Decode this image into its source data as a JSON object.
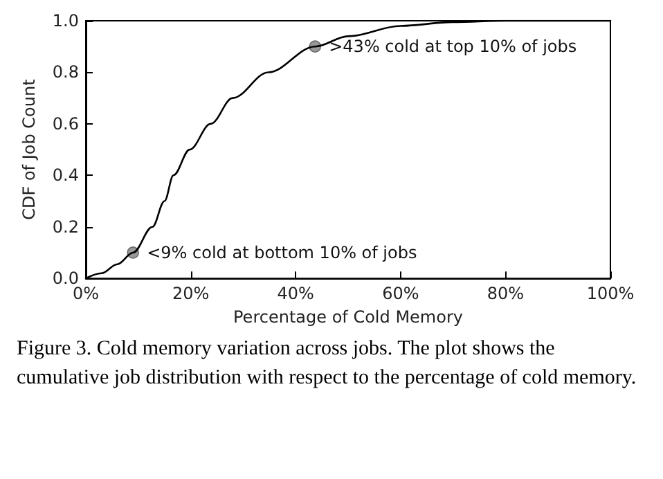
{
  "chart_data": {
    "type": "line",
    "xlabel": "Percentage of Cold Memory",
    "ylabel": "CDF of Job Count",
    "x": [
      0,
      3,
      6,
      9,
      12.7,
      15,
      16.7,
      19.8,
      23.8,
      28,
      34.8,
      43.7,
      50,
      60,
      70,
      80,
      90,
      100
    ],
    "series": [
      {
        "color": "#000000",
        "values": [
          0,
          0.02,
          0.055,
          0.1,
          0.2,
          0.3,
          0.4,
          0.5,
          0.6,
          0.7,
          0.8,
          0.9,
          0.94,
          0.98,
          0.995,
          1.0,
          1.0,
          1.0
        ]
      },
      {
        "type": "scatter",
        "marker": "circle",
        "color": "#808080",
        "x": [
          9,
          43.7
        ],
        "values": [
          0.1,
          0.9
        ]
      }
    ],
    "xlim": [
      0,
      100
    ],
    "xticks": [
      {
        "value": 0,
        "label": "0%"
      },
      {
        "value": 20,
        "label": "20%"
      },
      {
        "value": 40,
        "label": "40%"
      },
      {
        "value": 60,
        "label": "60%"
      },
      {
        "value": 80,
        "label": "80%"
      },
      {
        "value": 100,
        "label": "100%"
      }
    ],
    "ylim": [
      0,
      1
    ],
    "yticks": [
      {
        "value": 0,
        "label": "0.0"
      },
      {
        "value": 0.2,
        "label": "0.2"
      },
      {
        "value": 0.4,
        "label": "0.4"
      },
      {
        "value": 0.6,
        "label": "0.6"
      },
      {
        "value": 0.8,
        "label": "0.8"
      },
      {
        "value": 1,
        "label": "1.0"
      }
    ],
    "grid": false,
    "marker": "none",
    "line_style": "solid",
    "annotations": [
      {
        "text": "<9% cold at bottom 10% of jobs",
        "x": 9,
        "y": 0.1
      },
      {
        "text": ">43% cold at top 10% of jobs",
        "x": 43.7,
        "y": 0.9
      },
      "Figure 3. Cold memory variation across jobs. The plot shows the cumulative job distribution with respect to the percentage of cold memory."
    ]
  }
}
